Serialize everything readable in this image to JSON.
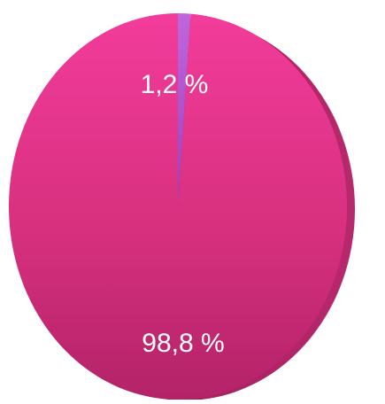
{
  "chart_data": {
    "type": "pie",
    "slices": [
      {
        "label": "1,2 %",
        "value": 1.2,
        "color": "#b45ad2"
      },
      {
        "label": "98,8 %",
        "value": 98.8,
        "color": "#e6348c"
      }
    ],
    "legend": "none",
    "grid": false,
    "style": "3d"
  }
}
